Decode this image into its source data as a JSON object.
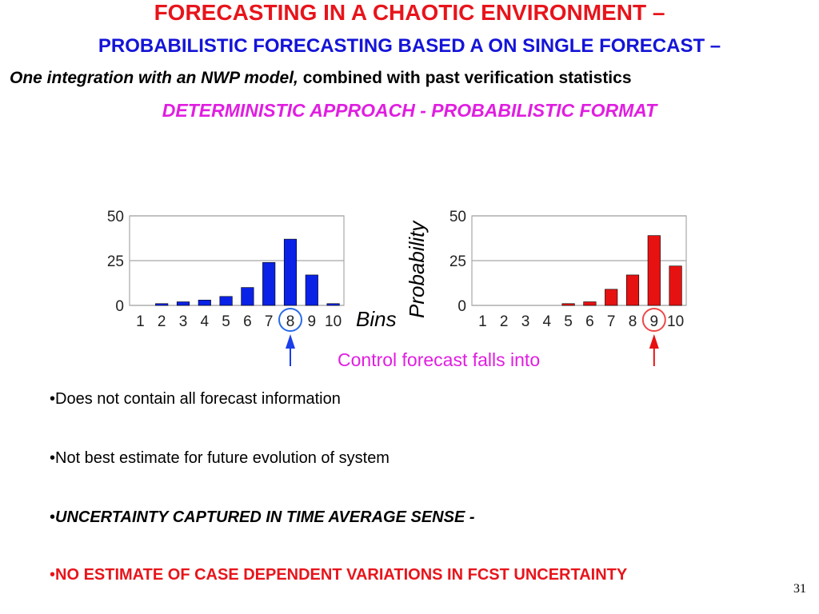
{
  "slide": {
    "title_line1": "FORECASTING IN A CHAOTIC ENVIRONMENT –",
    "title_line2": "PROBABILISTIC FORECASTING BASED A ON SINGLE FORECAST –",
    "title_line3_italic": "One integration with an NWP model,",
    "title_line3_rest": " combined with past verification statistics",
    "title_line4": "DETERMINISTIC APPROACH - PROBABILISTIC FORMAT",
    "bullets": [
      "•Does not contain all forecast information",
      "•Not best estimate for future evolution of system",
      "UNCERTAINTY CAPTURED IN TIME AVERAGE SENSE -",
      "NO ESTIMATE OF CASE DEPENDENT VARIATIONS IN FCST UNCERTAINTY"
    ],
    "bullet_marker": "•",
    "page_number": "31"
  },
  "chart_data": [
    {
      "type": "bar",
      "categories": [
        "1",
        "2",
        "3",
        "4",
        "5",
        "6",
        "7",
        "8",
        "9",
        "10"
      ],
      "values": [
        0,
        1,
        2,
        3,
        5,
        10,
        24,
        37,
        17,
        1
      ],
      "ylim": [
        0,
        50
      ],
      "yticks": [
        "0",
        "25",
        "50"
      ],
      "xlabel": "Bins",
      "ylabel": "",
      "highlight_category": "8",
      "color": "#0a22e6",
      "highlight_color": "#2e5fe8",
      "grid": true
    },
    {
      "type": "bar",
      "categories": [
        "1",
        "2",
        "3",
        "4",
        "5",
        "6",
        "7",
        "8",
        "9",
        "10"
      ],
      "values": [
        0,
        0,
        0,
        0,
        1,
        2,
        9,
        17,
        39,
        22
      ],
      "ylim": [
        0,
        50
      ],
      "yticks": [
        "0",
        "25",
        "50"
      ],
      "xlabel": "",
      "ylabel": "Probability",
      "highlight_category": "9",
      "color": "#e61212",
      "highlight_color": "#f05050",
      "grid": true
    }
  ],
  "annotation": "Control  forecast  falls  into",
  "annotation_color": "#e01ee0"
}
